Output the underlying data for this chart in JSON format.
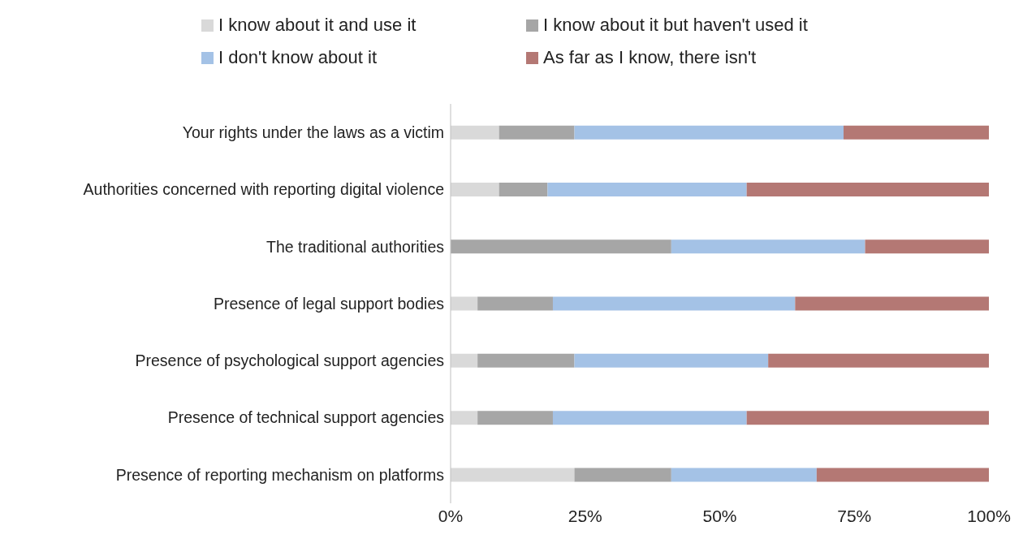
{
  "chart_data": {
    "type": "bar",
    "orientation": "horizontal",
    "stacked": true,
    "legend": "top",
    "grid": false,
    "categories": [
      "Your rights under the laws as a victim",
      "Authorities concerned with reporting digital violence",
      "The traditional authorities",
      "Presence of legal support bodies",
      "Presence of psychological support agencies",
      "Presence of technical support agencies",
      "Presence of reporting mechanism on platforms"
    ],
    "series": [
      {
        "name": "I know about it and use it",
        "color": "#d9d9d9",
        "values": [
          9,
          9,
          0,
          5,
          5,
          5,
          23
        ]
      },
      {
        "name": "I know about it but haven't used it",
        "color": "#a6a6a6",
        "values": [
          14,
          9,
          41,
          14,
          18,
          14,
          18
        ]
      },
      {
        "name": "I don't know about it",
        "color": "#a4c2e6",
        "values": [
          50,
          37,
          36,
          45,
          36,
          36,
          27
        ]
      },
      {
        "name": "As far as I know, there isn't",
        "color": "#b47874",
        "values": [
          27,
          45,
          23,
          36,
          41,
          45,
          32
        ]
      }
    ],
    "xlim": [
      0,
      100
    ],
    "xticks": [
      {
        "value": 0,
        "label": "0%"
      },
      {
        "value": 25,
        "label": "25%"
      },
      {
        "value": 50,
        "label": "50%"
      },
      {
        "value": 75,
        "label": "75%"
      },
      {
        "value": 100,
        "label": "100%"
      }
    ]
  }
}
